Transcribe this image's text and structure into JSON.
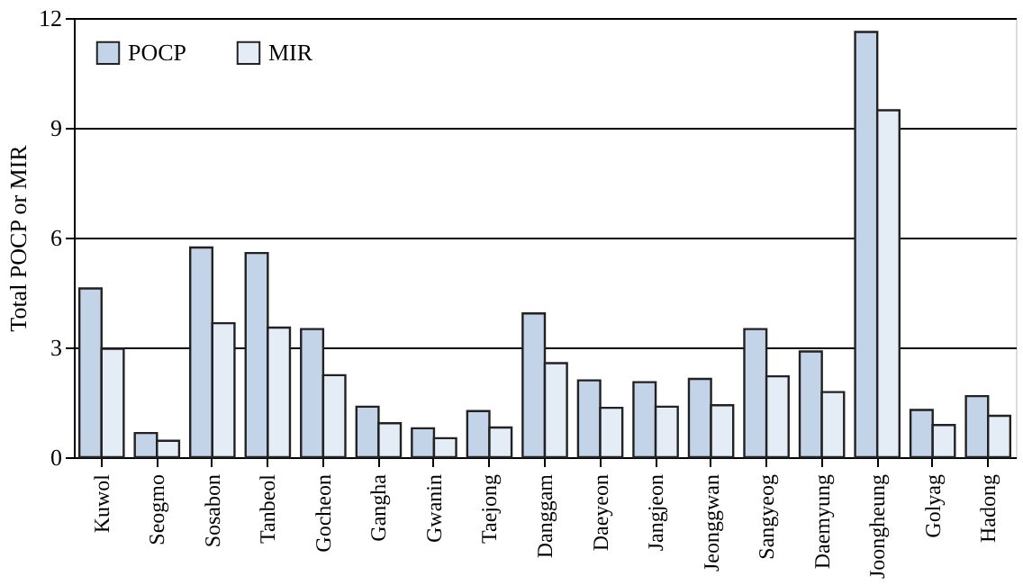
{
  "chart_data": {
    "type": "bar",
    "ylabel": "Total POCP or MIR",
    "categories": [
      "Kuwol",
      "Seogmo",
      "Sosabon",
      "Tanbeol",
      "Gocheon",
      "Gangha",
      "Gwanin",
      "Taejong",
      "Danggam",
      "Daeyeon",
      "Jangjeon",
      "Jeonggwan",
      "Sangyeog",
      "Daemyung",
      "Joongheung",
      "Golyag",
      "Hadong"
    ],
    "series": [
      {
        "name": "POCP",
        "color": "#c3d3e8",
        "values": [
          4.61,
          0.66,
          5.73,
          5.58,
          3.5,
          1.38,
          0.79,
          1.26,
          3.93,
          2.1,
          2.05,
          2.14,
          3.5,
          2.89,
          11.62,
          1.29,
          1.67
        ]
      },
      {
        "name": "MIR",
        "color": "#e4ecf6",
        "values": [
          2.96,
          0.45,
          3.66,
          3.54,
          2.24,
          0.93,
          0.52,
          0.81,
          2.57,
          1.35,
          1.38,
          1.42,
          2.21,
          1.78,
          9.48,
          0.88,
          1.13
        ]
      }
    ],
    "ylim": [
      0,
      12
    ],
    "yticks": [
      0,
      3,
      6,
      9,
      12
    ],
    "grid": "y",
    "legend": "top left"
  }
}
